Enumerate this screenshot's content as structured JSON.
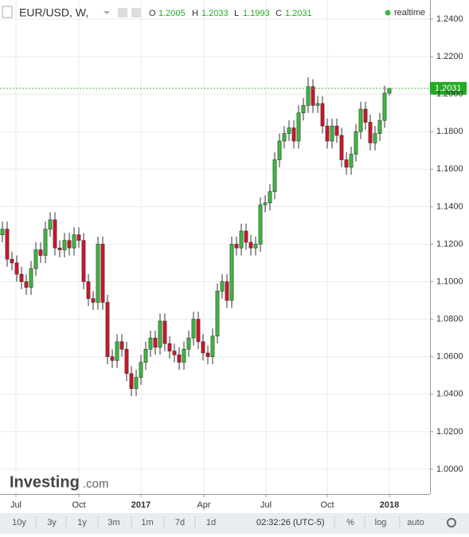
{
  "chart_data": {
    "type": "candlestick",
    "title": "EUR/USD, W,",
    "field_labels": [
      "O",
      "H",
      "L",
      "C"
    ],
    "status": "realtime",
    "up_color": "#3cb93c",
    "down_color": "#d0142a",
    "open": [
      1.125,
      1.128,
      1.112,
      1.11,
      1.104,
      1.1,
      1.097,
      1.107,
      1.117,
      1.114,
      1.128,
      1.133,
      1.118,
      1.117,
      1.122,
      1.118,
      1.125,
      1.122,
      1.1,
      1.091,
      1.089,
      1.12,
      1.089,
      1.06,
      1.058,
      1.068,
      1.064,
      1.051,
      1.043,
      1.049,
      1.057,
      1.064,
      1.07,
      1.065,
      1.079,
      1.067,
      1.063,
      1.061,
      1.057,
      1.064,
      1.07,
      1.08,
      1.068,
      1.062,
      1.06,
      1.071,
      1.095,
      1.1,
      1.09,
      1.12,
      1.118,
      1.127,
      1.121,
      1.118,
      1.12,
      1.141,
      1.142,
      1.148,
      1.165,
      1.175,
      1.179,
      1.182,
      1.175,
      1.19,
      1.194,
      1.204,
      1.194,
      1.195,
      1.183,
      1.175,
      1.183,
      1.178,
      1.165,
      1.161,
      1.168,
      1.18,
      1.192,
      1.185,
      1.174,
      1.179,
      1.186,
      1.2005
    ],
    "high": [
      1.132,
      1.132,
      1.116,
      1.114,
      1.108,
      1.104,
      1.111,
      1.121,
      1.121,
      1.132,
      1.137,
      1.137,
      1.122,
      1.126,
      1.126,
      1.129,
      1.129,
      1.126,
      1.104,
      1.095,
      1.124,
      1.124,
      1.093,
      1.064,
      1.072,
      1.072,
      1.068,
      1.055,
      1.053,
      1.061,
      1.068,
      1.074,
      1.074,
      1.083,
      1.083,
      1.071,
      1.067,
      1.065,
      1.068,
      1.074,
      1.084,
      1.084,
      1.072,
      1.066,
      1.075,
      1.099,
      1.104,
      1.104,
      1.124,
      1.124,
      1.131,
      1.131,
      1.125,
      1.124,
      1.145,
      1.146,
      1.152,
      1.169,
      1.179,
      1.183,
      1.186,
      1.186,
      1.194,
      1.198,
      1.209,
      1.208,
      1.199,
      1.199,
      1.187,
      1.187,
      1.187,
      1.182,
      1.169,
      1.172,
      1.184,
      1.196,
      1.196,
      1.189,
      1.183,
      1.19,
      1.2045,
      1.2033
    ],
    "low": [
      1.121,
      1.108,
      1.106,
      1.1,
      1.096,
      1.093,
      1.093,
      1.103,
      1.11,
      1.11,
      1.124,
      1.114,
      1.113,
      1.113,
      1.114,
      1.114,
      1.118,
      1.096,
      1.087,
      1.085,
      1.085,
      1.085,
      1.056,
      1.054,
      1.054,
      1.06,
      1.047,
      1.039,
      1.039,
      1.045,
      1.053,
      1.06,
      1.061,
      1.061,
      1.063,
      1.059,
      1.057,
      1.053,
      1.053,
      1.06,
      1.066,
      1.064,
      1.058,
      1.056,
      1.056,
      1.067,
      1.091,
      1.086,
      1.086,
      1.114,
      1.114,
      1.117,
      1.114,
      1.114,
      1.116,
      1.137,
      1.138,
      1.144,
      1.161,
      1.171,
      1.175,
      1.171,
      1.171,
      1.186,
      1.19,
      1.19,
      1.19,
      1.179,
      1.171,
      1.171,
      1.174,
      1.161,
      1.157,
      1.157,
      1.164,
      1.176,
      1.181,
      1.17,
      1.17,
      1.175,
      1.182,
      1.1993
    ],
    "close": [
      1.128,
      1.112,
      1.11,
      1.104,
      1.1,
      1.097,
      1.107,
      1.117,
      1.114,
      1.128,
      1.133,
      1.118,
      1.117,
      1.122,
      1.118,
      1.125,
      1.122,
      1.1,
      1.091,
      1.089,
      1.12,
      1.089,
      1.06,
      1.058,
      1.068,
      1.064,
      1.051,
      1.043,
      1.049,
      1.057,
      1.064,
      1.07,
      1.065,
      1.079,
      1.067,
      1.063,
      1.061,
      1.057,
      1.064,
      1.07,
      1.08,
      1.068,
      1.062,
      1.06,
      1.071,
      1.095,
      1.1,
      1.09,
      1.12,
      1.118,
      1.127,
      1.121,
      1.118,
      1.12,
      1.141,
      1.142,
      1.148,
      1.165,
      1.175,
      1.179,
      1.182,
      1.175,
      1.19,
      1.194,
      1.204,
      1.194,
      1.195,
      1.183,
      1.175,
      1.183,
      1.178,
      1.165,
      1.161,
      1.168,
      1.18,
      1.192,
      1.185,
      1.174,
      1.179,
      1.186,
      1.2005,
      1.2031
    ],
    "xlim": [
      -0.5,
      89.5
    ],
    "xticks": [
      {
        "value": 2.83,
        "label": "Jul"
      },
      {
        "value": 16,
        "label": "Oct"
      },
      {
        "value": 29,
        "label": "2017"
      },
      {
        "value": 42.17,
        "label": "Apr"
      },
      {
        "value": 55.17,
        "label": "Jul"
      },
      {
        "value": 68,
        "label": "Oct"
      },
      {
        "value": 81,
        "label": "2018"
      }
    ],
    "ylim": [
      0.9868,
      1.2502
    ],
    "yticks": [
      {
        "value": 1.0,
        "label": "1.0000"
      },
      {
        "value": 1.02,
        "label": "1.0200"
      },
      {
        "value": 1.04,
        "label": "1.0400"
      },
      {
        "value": 1.06,
        "label": "1.0600"
      },
      {
        "value": 1.08,
        "label": "1.0800"
      },
      {
        "value": 1.1,
        "label": "1.1000"
      },
      {
        "value": 1.12,
        "label": "1.1200"
      },
      {
        "value": 1.14,
        "label": "1.1400"
      },
      {
        "value": 1.16,
        "label": "1.1600"
      },
      {
        "value": 1.18,
        "label": "1.1800"
      },
      {
        "value": 1.2,
        "label": "1.2000"
      },
      {
        "value": 1.22,
        "label": "1.2200"
      },
      {
        "value": 1.24,
        "label": "1.2400"
      }
    ],
    "grid": true
  },
  "brand": {
    "name": "Investing",
    "suffix": ".com"
  },
  "toolbar": {
    "ranges": [
      "10y",
      "3y",
      "1y",
      "3m",
      "1m",
      "7d",
      "1d"
    ],
    "time": "02:32:26 (UTC-5)",
    "options": [
      "%",
      "log",
      "auto"
    ]
  }
}
